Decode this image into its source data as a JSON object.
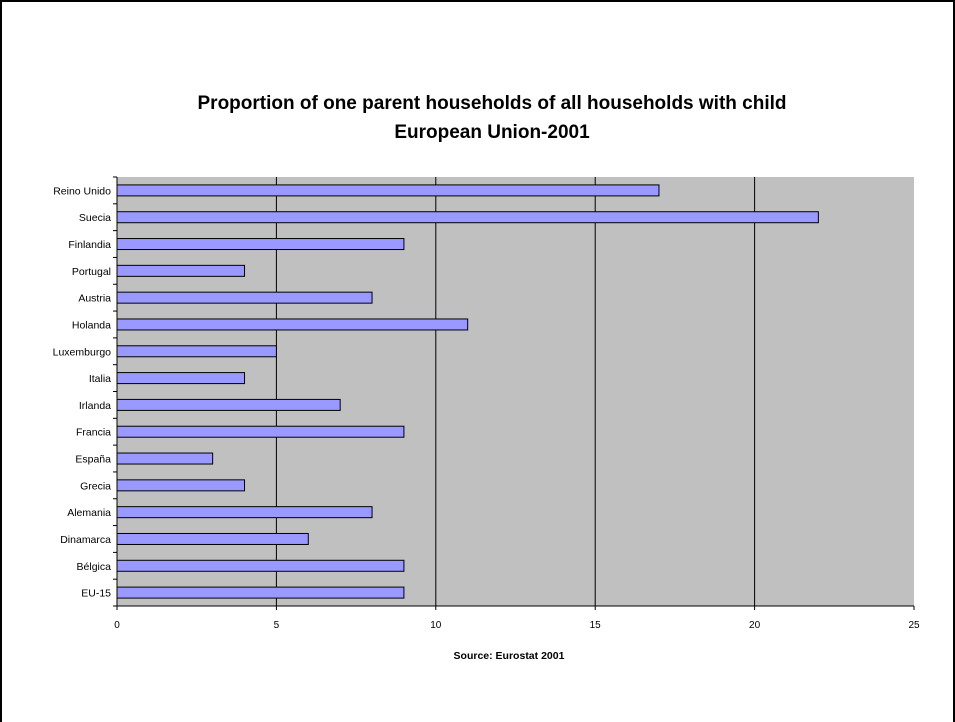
{
  "chart_data": {
    "type": "bar",
    "orientation": "horizontal",
    "title": "Proportion of one parent households of all households with child",
    "subtitle": "European Union-2001",
    "xlabel": "Source: Eurostat 2001",
    "ylabel": "",
    "xlim": [
      0,
      25
    ],
    "xticks": [
      "0",
      "5",
      "10",
      "15",
      "20",
      "25"
    ],
    "grid": true,
    "legend": "none",
    "categories": [
      "Reino Unido",
      "Suecia",
      "Finlandia",
      "Portugal",
      "Austria",
      "Holanda",
      "Luxemburgo",
      "Italia",
      "Irlanda",
      "Francia",
      "España",
      "Grecia",
      "Alemania",
      "Dinamarca",
      "Bélgica",
      "EU-15"
    ],
    "values": [
      17,
      22,
      9,
      4,
      8,
      11,
      5,
      4,
      7,
      9,
      3,
      4,
      8,
      6,
      9,
      9
    ],
    "colors": {
      "bar": "#9999ff",
      "plot_area": "#c0c0c0",
      "gridline": "#000000"
    }
  }
}
